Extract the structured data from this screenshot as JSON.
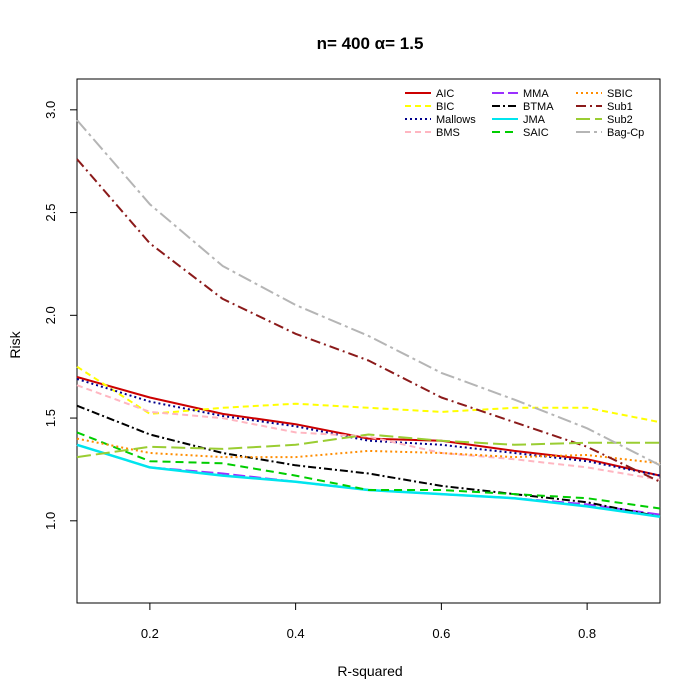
{
  "chart_data": {
    "type": "line",
    "title": "n= 400 α= 1.5",
    "xlabel": "R-squared",
    "ylabel": "Risk",
    "xlim": [
      0.1,
      0.9
    ],
    "ylim": [
      0.6,
      3.15
    ],
    "xticks": [
      {
        "value": 0.2,
        "label": "0.2"
      },
      {
        "value": 0.4,
        "label": "0.4"
      },
      {
        "value": 0.6,
        "label": "0.6"
      },
      {
        "value": 0.8,
        "label": "0.8"
      }
    ],
    "yticks": [
      {
        "value": 1.0,
        "label": "1.0"
      },
      {
        "value": 1.5,
        "label": "1.5"
      },
      {
        "value": 2.0,
        "label": "2.0"
      },
      {
        "value": 2.5,
        "label": "2.5"
      },
      {
        "value": 3.0,
        "label": "3.0"
      }
    ],
    "legend_position": "top-right",
    "x": [
      0.1,
      0.2,
      0.3,
      0.4,
      0.5,
      0.6,
      0.7,
      0.8,
      0.9
    ],
    "series": [
      {
        "name": "AIC",
        "color": "#cc0000",
        "dash": "",
        "width": 2,
        "values": [
          1.7,
          1.6,
          1.52,
          1.47,
          1.4,
          1.39,
          1.34,
          1.3,
          1.22
        ]
      },
      {
        "name": "BIC",
        "color": "#ffff00",
        "dash": "6,4",
        "width": 2,
        "values": [
          1.75,
          1.52,
          1.55,
          1.57,
          1.55,
          1.53,
          1.55,
          1.55,
          1.48
        ]
      },
      {
        "name": "Mallows",
        "color": "#00008b",
        "dash": "2,3",
        "width": 2,
        "values": [
          1.69,
          1.58,
          1.51,
          1.46,
          1.39,
          1.37,
          1.33,
          1.29,
          1.22
        ]
      },
      {
        "name": "BMS",
        "color": "#ffb6c1",
        "dash": "6,4",
        "width": 2,
        "values": [
          1.66,
          1.53,
          1.5,
          1.43,
          1.41,
          1.33,
          1.3,
          1.26,
          1.2
        ]
      },
      {
        "name": "MMA",
        "color": "#9b30ff",
        "dash": "12,4",
        "width": 2,
        "values": [
          1.37,
          1.26,
          1.23,
          1.19,
          1.15,
          1.13,
          1.11,
          1.08,
          1.03
        ]
      },
      {
        "name": "BTMA",
        "color": "#000000",
        "dash": "8,3,2,3",
        "width": 2,
        "values": [
          1.56,
          1.42,
          1.33,
          1.27,
          1.23,
          1.17,
          1.13,
          1.09,
          1.02
        ]
      },
      {
        "name": "JMA",
        "color": "#00e5ee",
        "dash": "",
        "width": 2.5,
        "values": [
          1.37,
          1.26,
          1.22,
          1.19,
          1.15,
          1.13,
          1.11,
          1.07,
          1.02
        ]
      },
      {
        "name": "SAIC",
        "color": "#00cd00",
        "dash": "8,5",
        "width": 2,
        "values": [
          1.43,
          1.29,
          1.28,
          1.22,
          1.15,
          1.15,
          1.13,
          1.11,
          1.06
        ]
      },
      {
        "name": "SBIC",
        "color": "#ff8c00",
        "dash": "2,3",
        "width": 2,
        "values": [
          1.4,
          1.33,
          1.31,
          1.31,
          1.34,
          1.33,
          1.31,
          1.32,
          1.28
        ]
      },
      {
        "name": "Sub1",
        "color": "#8b1a1a",
        "dash": "10,4,2,4",
        "width": 2,
        "values": [
          2.76,
          2.35,
          2.08,
          1.91,
          1.78,
          1.6,
          1.48,
          1.36,
          1.19
        ]
      },
      {
        "name": "Sub2",
        "color": "#9acd32",
        "dash": "14,5",
        "width": 2,
        "values": [
          1.31,
          1.36,
          1.35,
          1.37,
          1.42,
          1.39,
          1.37,
          1.38,
          1.38
        ]
      },
      {
        "name": "Bag-Cp",
        "color": "#b5b5b5",
        "dash": "14,4,3,4",
        "width": 2,
        "values": [
          2.95,
          2.54,
          2.24,
          2.05,
          1.9,
          1.72,
          1.59,
          1.45,
          1.27
        ]
      }
    ]
  }
}
